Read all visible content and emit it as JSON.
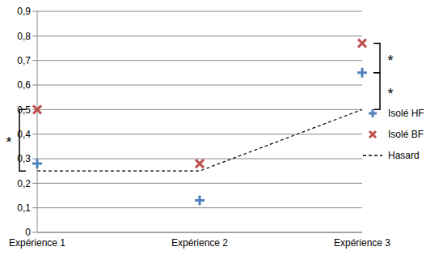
{
  "chart_data": {
    "type": "scatter",
    "categories": [
      "Expérience 1",
      "Expérience 2",
      "Expérience 3"
    ],
    "series": [
      {
        "name": "Isolé HF",
        "color": "#4f81bd",
        "marker": "plus",
        "values": [
          0.28,
          0.13,
          0.65
        ]
      },
      {
        "name": "Isolé BF",
        "color": "#c0504d",
        "marker": "x",
        "values": [
          0.5,
          0.28,
          0.77
        ]
      },
      {
        "name": "Hasard",
        "type": "line",
        "color": "#000000",
        "line_style": "dashed",
        "values": [
          0.25,
          0.25,
          0.5
        ]
      }
    ],
    "ylim": [
      0,
      0.9
    ],
    "yticks": [
      0,
      {
        "value": 0.1,
        "label": "0,1"
      },
      {
        "value": 0.2,
        "label": "0,2"
      },
      {
        "value": 0.3,
        "label": "0,3"
      },
      {
        "value": 0.4,
        "label": "0,4"
      },
      {
        "value": 0.5,
        "label": "0,5"
      },
      {
        "value": 0.6,
        "label": "0,6"
      },
      {
        "value": 0.7,
        "label": "0,7"
      },
      {
        "value": 0.8,
        "label": "0,8"
      },
      {
        "value": 0.9,
        "label": "0,9"
      }
    ],
    "grid": true,
    "legend": "right",
    "annotations": [
      {
        "text": "*",
        "category": "Expérience 1",
        "from": 0.25,
        "to": 0.5
      },
      {
        "text": "*",
        "category": "Expérience 3",
        "from": 0.65,
        "to": 0.77
      },
      {
        "text": "*",
        "category": "Expérience 3",
        "from": 0.5,
        "to": 0.65
      }
    ]
  }
}
